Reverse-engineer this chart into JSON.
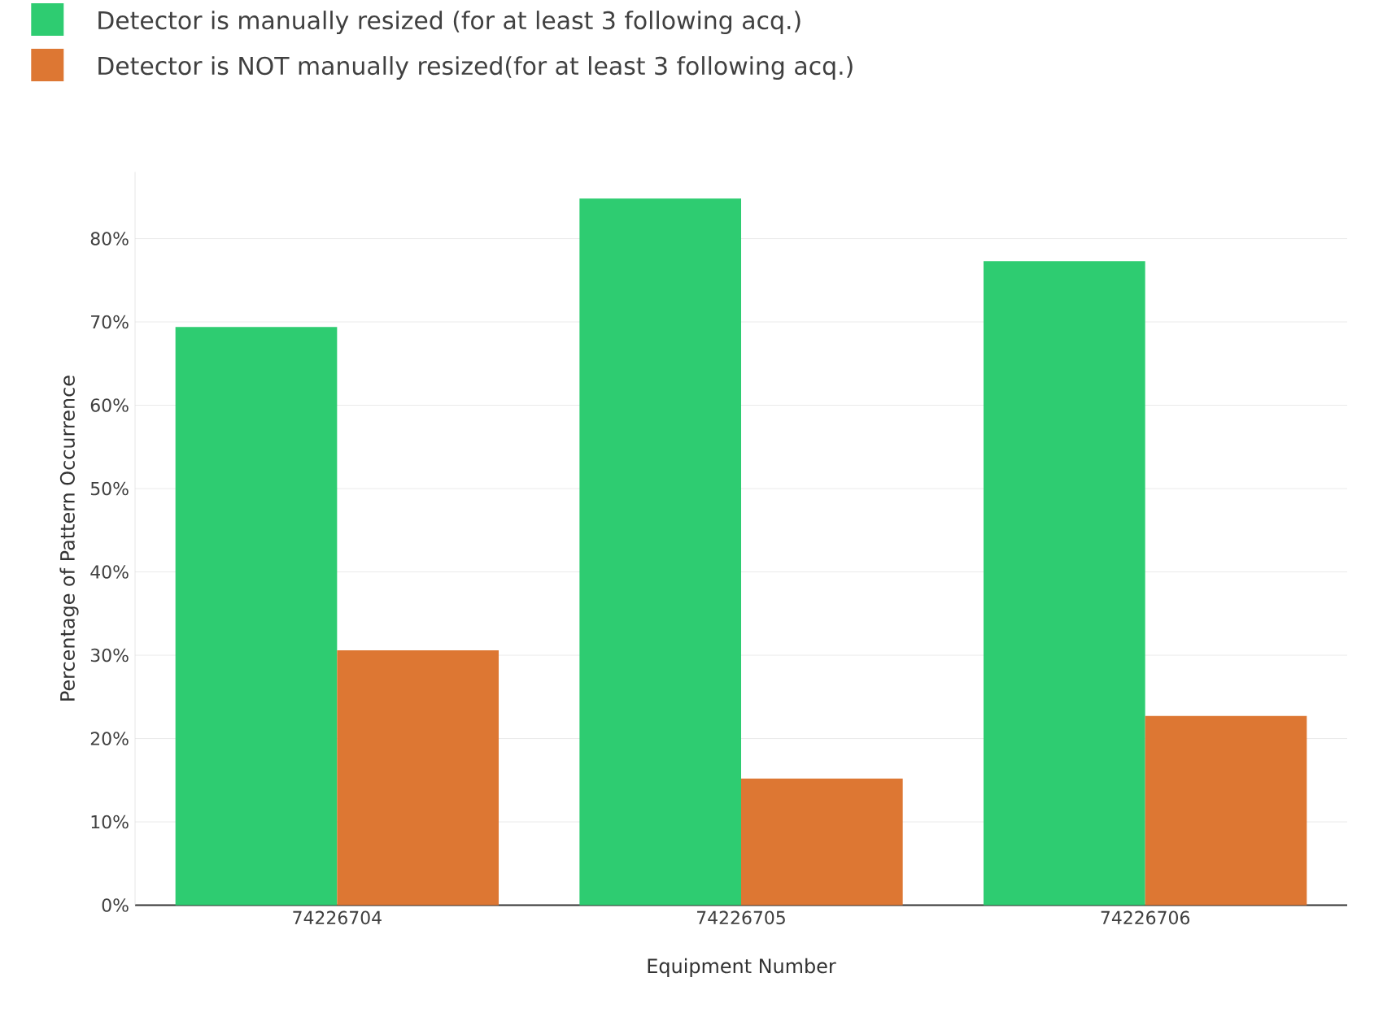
{
  "chart_data": {
    "type": "bar",
    "xlabel": "Equipment Number",
    "ylabel": "Percentage of Pattern Occurrence",
    "categories": [
      "74226704",
      "74226705",
      "74226706"
    ],
    "series": [
      {
        "name": "Detector is manually resized (for at least 3 following acq.)",
        "color": "#2ecc71",
        "values": [
          69.4,
          84.8,
          77.3
        ]
      },
      {
        "name": "Detector is NOT manually resized(for at least 3 following acq.)",
        "color": "#dd7733",
        "values": [
          30.6,
          15.2,
          22.7
        ]
      }
    ],
    "yticks": [
      {
        "value": 0,
        "label": "0%"
      },
      {
        "value": 10,
        "label": "10%"
      },
      {
        "value": 20,
        "label": "20%"
      },
      {
        "value": 30,
        "label": "30%"
      },
      {
        "value": 40,
        "label": "40%"
      },
      {
        "value": 50,
        "label": "50%"
      },
      {
        "value": 60,
        "label": "60%"
      },
      {
        "value": 70,
        "label": "70%"
      },
      {
        "value": 80,
        "label": "80%"
      }
    ],
    "ylim": [
      0,
      88
    ],
    "grid": "y",
    "legend": "top left"
  }
}
